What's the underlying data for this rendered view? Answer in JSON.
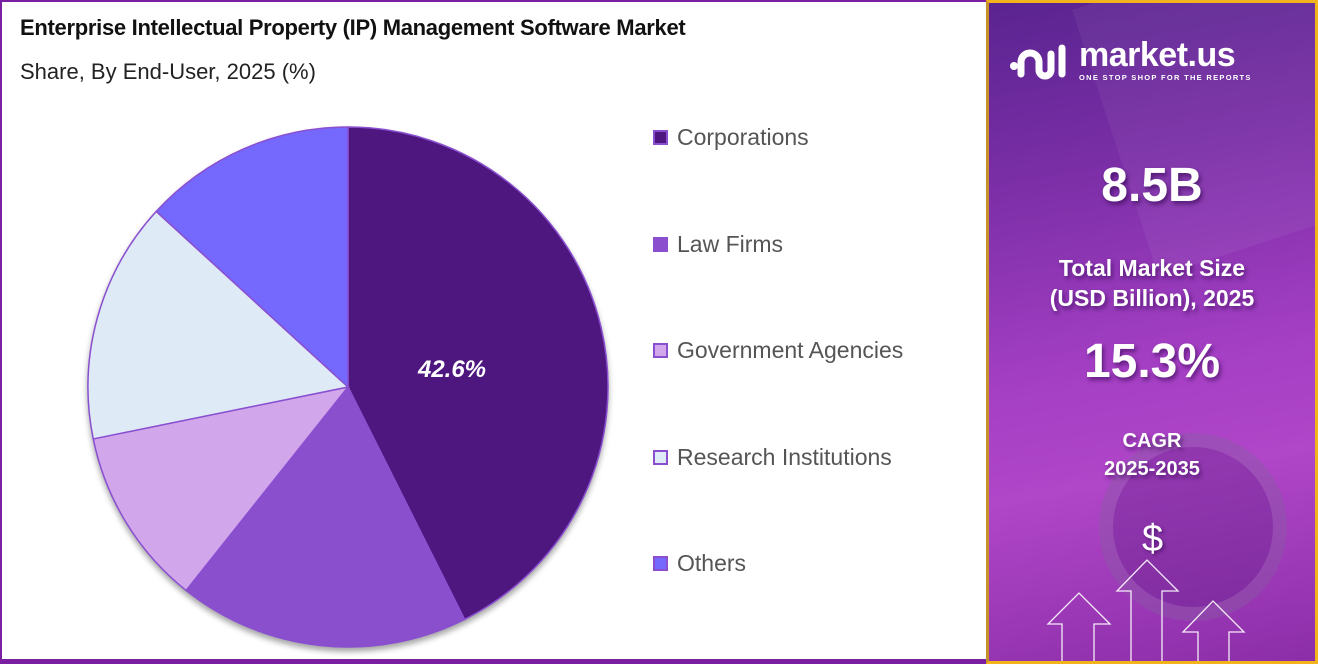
{
  "header": {
    "title": "Enterprise Intellectual Property (IP) Management Software Market",
    "subtitle": "Share, By End-User, 2025 (%)"
  },
  "chart_data": {
    "type": "pie",
    "title": "Enterprise Intellectual Property (IP) Management Software Market",
    "subtitle": "Share, By End-User, 2025 (%)",
    "categories": [
      "Corporations",
      "Law Firms",
      "Government Agencies",
      "Research Institutions",
      "Others"
    ],
    "values": [
      42.6,
      18.1,
      11.1,
      15.0,
      13.2
    ],
    "colors": [
      "#4e1780",
      "#8a4fcc",
      "#d2a6ea",
      "#deeaf6",
      "#7568fd"
    ],
    "data_labels": [
      "42.6%",
      "",
      "",
      "",
      ""
    ],
    "start_angle": "12 o'clock, clockwise",
    "legend_position": "right"
  },
  "pie": {
    "label": "42.6%"
  },
  "legend": {
    "items": [
      {
        "label": "Corporations",
        "color": "#4e1780"
      },
      {
        "label": "Law Firms",
        "color": "#8a4fcc"
      },
      {
        "label": "Government Agencies",
        "color": "#d2a6ea"
      },
      {
        "label": "Research Institutions",
        "color": "#deeaf6"
      },
      {
        "label": "Others",
        "color": "#7568fd"
      }
    ]
  },
  "sidebar": {
    "brand": "market.us",
    "tagline": "ONE STOP SHOP FOR THE REPORTS",
    "market_size_value": "8.5B",
    "market_size_label_1": "Total Market Size",
    "market_size_label_2": "(USD Billion), 2025",
    "cagr_value": "15.3%",
    "cagr_label_1": "CAGR",
    "cagr_label_2": "2025-2035",
    "dollar_symbol": "$"
  },
  "colors": {
    "frame_border": "#7a1fa2",
    "sidebar_border": "#f2b31c",
    "slice_stroke": "#8a4fd0"
  }
}
